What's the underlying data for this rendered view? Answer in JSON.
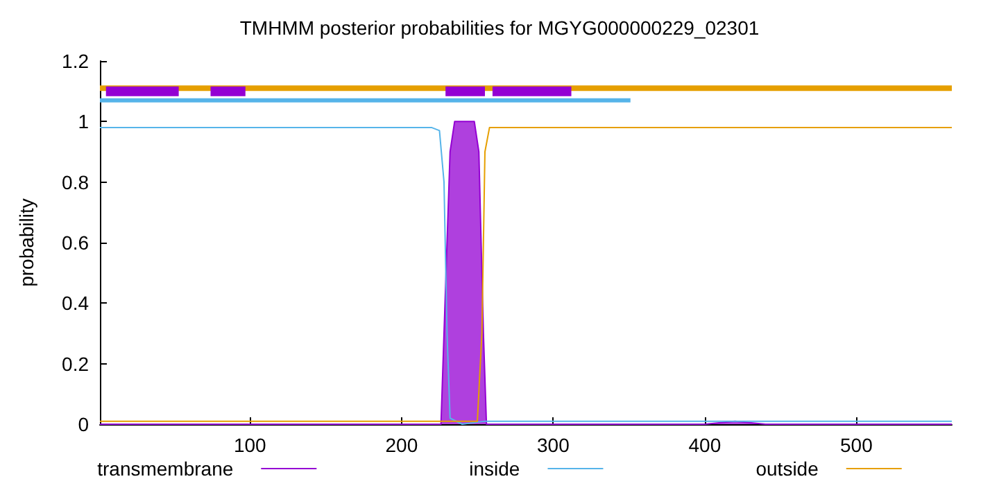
{
  "chart_data": {
    "type": "line",
    "title": "TMHMM posterior probabilities for MGYG000000229_02301",
    "ylabel": "probability",
    "xlim": [
      1,
      563
    ],
    "xticks": [
      100,
      200,
      300,
      400,
      500
    ],
    "ylim": [
      0,
      1.2
    ],
    "yticks": [
      0,
      0.2,
      0.4,
      0.6,
      0.8,
      1,
      1.2
    ],
    "grid": false,
    "legend": "bottom",
    "marker": "none",
    "series": [
      {
        "name": "transmembrane",
        "type": "area",
        "color": "#9400d3",
        "x": [
          1,
          226,
          228,
          230,
          232,
          235,
          248,
          251,
          254,
          256,
          400,
          420,
          440,
          563
        ],
        "values": [
          0,
          0,
          0.3,
          0.6,
          0.9,
          1,
          1,
          0.9,
          0.3,
          0,
          0,
          0.01,
          0,
          0
        ]
      },
      {
        "name": "inside",
        "color": "#56b4e9",
        "x": [
          1,
          220,
          225,
          228,
          230,
          232,
          240,
          255,
          400,
          563
        ],
        "values": [
          0.98,
          0.98,
          0.97,
          0.8,
          0.3,
          0.02,
          0,
          0.01,
          0.01,
          0.01
        ]
      },
      {
        "name": "outside",
        "color": "#e69f00",
        "x": [
          1,
          250,
          253,
          255,
          258,
          400,
          563
        ],
        "values": [
          0.01,
          0.01,
          0.3,
          0.9,
          0.98,
          0.98,
          0.98
        ]
      },
      {
        "color": "#e69f00",
        "x": [
          1,
          563
        ],
        "values": [
          1.11,
          1.11
        ]
      },
      {
        "color": "#56b4e9",
        "x": [
          1,
          351
        ],
        "values": [
          1.07,
          1.07
        ]
      },
      {
        "color": "#9400d3",
        "x": [
          5,
          53,
          60,
          74,
          97,
          200,
          229,
          255,
          257,
          260,
          312
        ],
        "values": [
          1.1,
          1.1,
          null,
          1.1,
          1.1,
          null,
          1.1,
          1.1,
          null,
          1.1,
          1.1
        ]
      }
    ]
  }
}
